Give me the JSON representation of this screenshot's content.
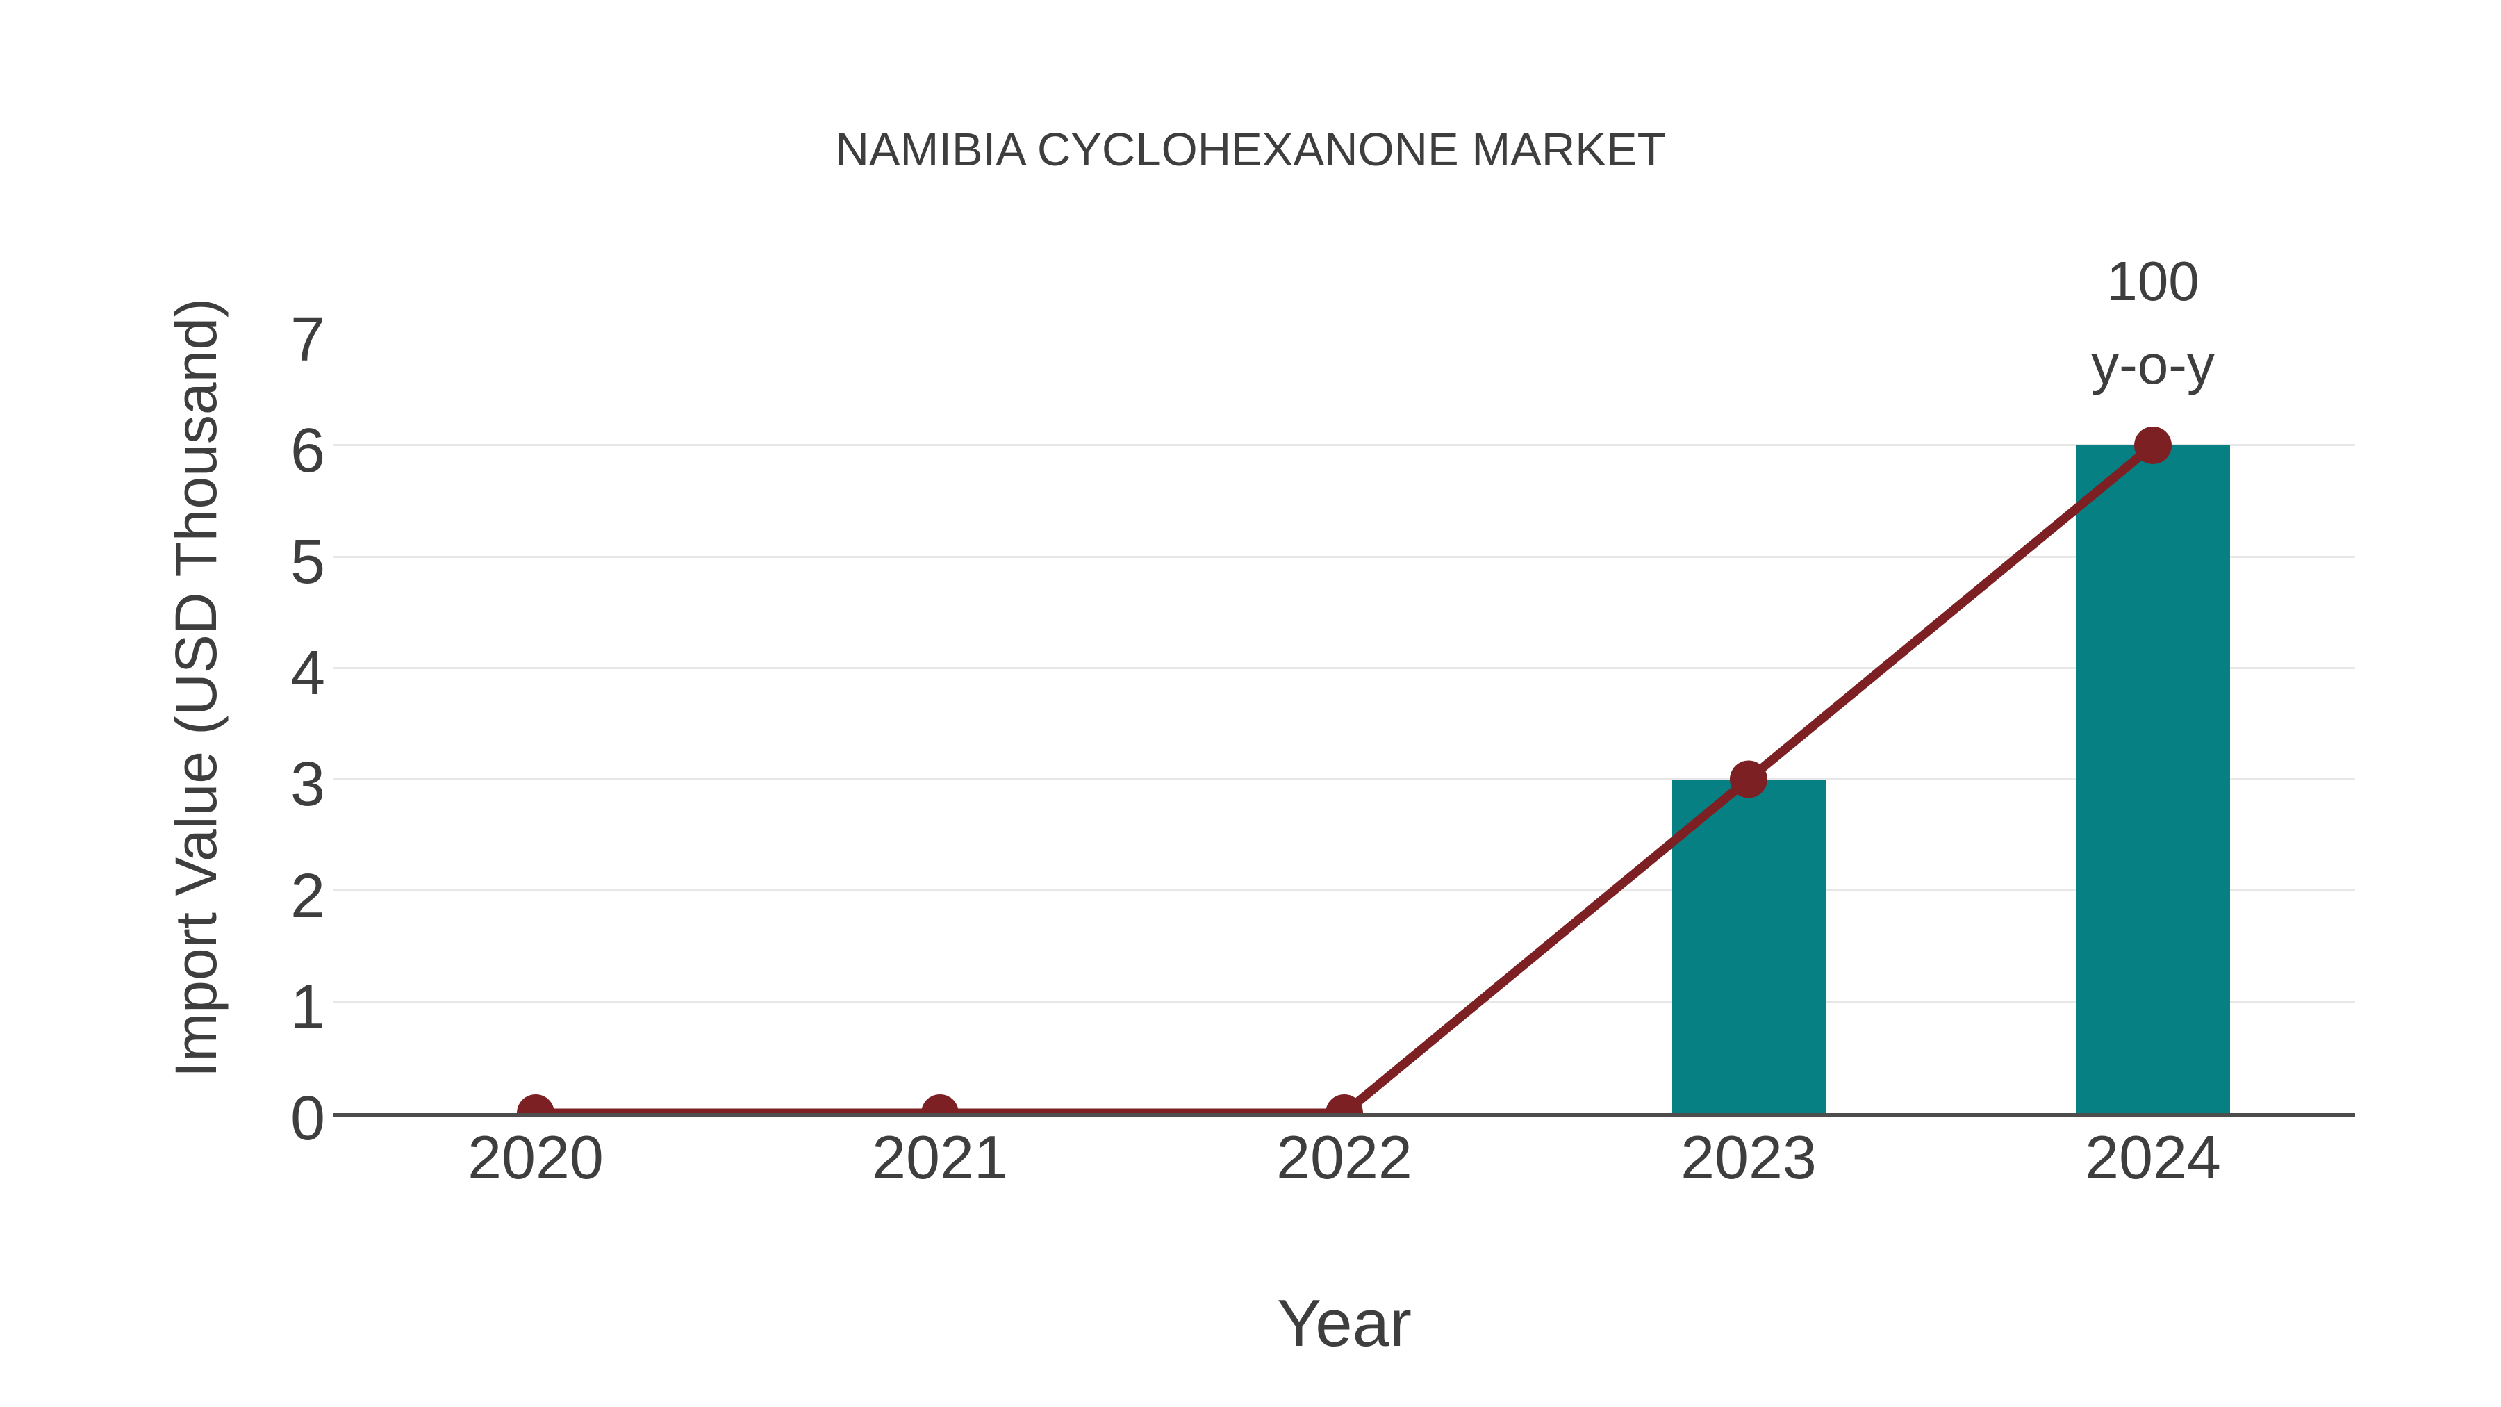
{
  "chart_data": {
    "type": "bar",
    "combo": "bar+line",
    "title": "NAMIBIA CYCLOHEXANONE MARKET",
    "xlabel": "Year",
    "ylabel": "Import Value (USD Thousand)",
    "categories": [
      "2020",
      "2021",
      "2022",
      "2023",
      "2024"
    ],
    "series": [
      {
        "name": "Import Value bars",
        "type": "bar",
        "values": [
          0,
          0,
          0,
          3,
          6
        ]
      },
      {
        "name": "Import Value line",
        "type": "line",
        "values": [
          0,
          0,
          0,
          3,
          6
        ]
      }
    ],
    "ylim": [
      0,
      7
    ],
    "yticks": [
      0,
      1,
      2,
      3,
      4,
      5,
      6,
      7
    ],
    "grid": true,
    "legend_position": "none",
    "annotation": {
      "lines": [
        "100",
        "y-o-y"
      ],
      "x": "2024",
      "y": 6
    },
    "colors": {
      "bar": "#068082",
      "line": "#7d2024",
      "marker": "#7d2024",
      "text": "#3e3e3e",
      "grid": "#e7e7e7",
      "axis": "#4d4d4d",
      "background": "#ffffff"
    }
  }
}
